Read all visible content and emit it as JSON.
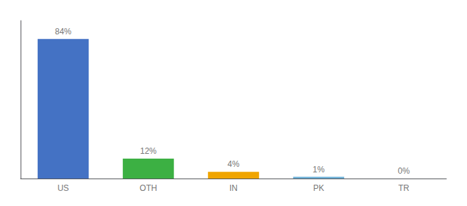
{
  "chart_data": {
    "type": "bar",
    "categories": [
      "US",
      "OTH",
      "IN",
      "PK",
      "TR"
    ],
    "values": [
      84,
      12,
      4,
      1,
      0
    ],
    "value_labels": [
      "84%",
      "12%",
      "4%",
      "1%",
      "0%"
    ],
    "colors": [
      "#4472c4",
      "#3cb043",
      "#f0a500",
      "#6baed6",
      "#6baed6"
    ],
    "ylim": [
      0,
      95
    ],
    "grid": false,
    "data_labels": true,
    "tick_labels": "x"
  }
}
